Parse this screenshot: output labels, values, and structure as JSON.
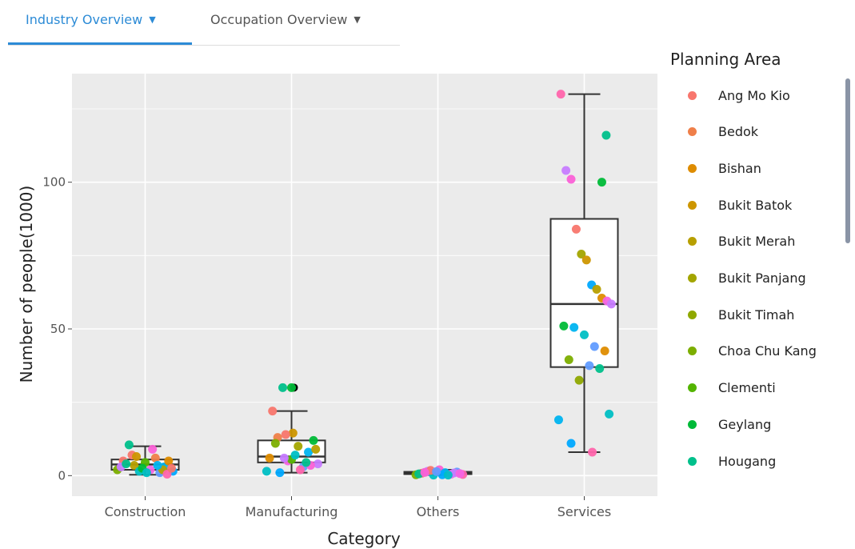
{
  "tabs": [
    {
      "label": "Industry Overview",
      "active": true
    },
    {
      "label": "Occupation Overview",
      "active": false
    }
  ],
  "colors": {
    "tab_active": "#2c8bd6",
    "panel_bg": "#ebebeb",
    "grid": "#ffffff",
    "box_stroke": "#333333",
    "outlier": "#000000"
  },
  "chart_data": {
    "type": "box",
    "xlabel": "Category",
    "ylabel": "Number of people(1000)",
    "ylim": [
      -7,
      137
    ],
    "yticks": [
      0,
      50,
      100
    ],
    "grid": true,
    "legend_position": "right",
    "legend_title": "Planning Area",
    "legend_entries": [
      {
        "name": "Ang Mo Kio",
        "color": "#f8766d"
      },
      {
        "name": "Bedok",
        "color": "#ef7f49"
      },
      {
        "name": "Bishan",
        "color": "#de8c00"
      },
      {
        "name": "Bukit Batok",
        "color": "#cd9600"
      },
      {
        "name": "Bukit Merah",
        "color": "#b79f00"
      },
      {
        "name": "Bukit Panjang",
        "color": "#a3a500"
      },
      {
        "name": "Bukit Timah",
        "color": "#8fa800"
      },
      {
        "name": "Choa Chu Kang",
        "color": "#7cae00"
      },
      {
        "name": "Clementi",
        "color": "#53b400"
      },
      {
        "name": "Geylang",
        "color": "#00ba38"
      },
      {
        "name": "Hougang",
        "color": "#00c08b"
      }
    ],
    "categories": [
      "Construction",
      "Manufacturing",
      "Others",
      "Services"
    ],
    "boxes": [
      {
        "category": "Construction",
        "whisker_low": 0.3,
        "q1": 2,
        "median": 3.8,
        "q3": 5.5,
        "whisker_high": 10
      },
      {
        "category": "Manufacturing",
        "whisker_low": 1,
        "q1": 4.5,
        "median": 6.5,
        "q3": 12,
        "whisker_high": 22,
        "outliers": [
          30
        ]
      },
      {
        "category": "Others",
        "whisker_low": 0.2,
        "q1": 0.5,
        "median": 0.8,
        "q3": 1.3,
        "whisker_high": 2
      },
      {
        "category": "Services",
        "whisker_low": 8,
        "q1": 37,
        "median": 58.5,
        "q3": 87.5,
        "whisker_high": 130
      }
    ],
    "points": [
      {
        "category": "Construction",
        "jitter": [
          -0.38,
          -0.3,
          -0.22,
          -0.15,
          -0.08,
          0,
          0.07,
          0.14,
          0.2,
          0.26,
          0.32,
          0.38,
          -0.33,
          -0.18,
          -0.04,
          0.1,
          0.24,
          -0.26,
          0.02,
          0.3,
          -0.12,
          0.17,
          0.36
        ],
        "values": [
          2,
          5,
          10.5,
          3.5,
          1.5,
          4.5,
          2,
          6,
          1,
          3,
          5,
          1.5,
          3,
          7,
          2.5,
          9,
          2,
          4,
          1,
          0.5,
          6.5,
          3.5,
          2.5
        ],
        "colors": [
          "#7cae00",
          "#f8766d",
          "#00c08b",
          "#b79f00",
          "#00bfc4",
          "#53b400",
          "#f564e3",
          "#ef7f49",
          "#619cff",
          "#00b4f0",
          "#de8c00",
          "#00a9ff",
          "#c77cff",
          "#f8766d",
          "#00ba38",
          "#fb61d7",
          "#b79f00",
          "#00c08b",
          "#00bfc4",
          "#ff65ac",
          "#cd9600",
          "#00b4f0",
          "#f8766d"
        ]
      },
      {
        "category": "Manufacturing",
        "jitter": [
          -0.34,
          -0.26,
          -0.19,
          -0.12,
          -0.05,
          0.02,
          0.09,
          0.16,
          0.23,
          0.3,
          0.36,
          -0.3,
          -0.16,
          0,
          0.12,
          0.26,
          -0.22,
          0.05,
          0.33,
          -0.08,
          0.2,
          0,
          -0.1
        ],
        "values": [
          1.5,
          22,
          13,
          30,
          5,
          14.5,
          10,
          3,
          8,
          12,
          4,
          6,
          1,
          5.5,
          2,
          3.5,
          11,
          7,
          9,
          14,
          4.5,
          30,
          6
        ],
        "colors": [
          "#00bfc4",
          "#f8766d",
          "#ef7f49",
          "#00c08b",
          "#f564e3",
          "#cd9600",
          "#a3a500",
          "#619cff",
          "#00b4f0",
          "#00ba38",
          "#c77cff",
          "#de8c00",
          "#00a9ff",
          "#53b400",
          "#ff65ac",
          "#fb61d7",
          "#7cae00",
          "#00bfc4",
          "#b79f00",
          "#f8766d",
          "#00c08b",
          "#00ba38",
          "#c77cff"
        ]
      },
      {
        "category": "Others",
        "jitter": [
          -0.3,
          -0.22,
          -0.14,
          -0.06,
          0.02,
          0.1,
          0.18,
          0.26,
          0.34,
          -0.26,
          -0.1,
          0.06,
          0.22,
          -0.18,
          0.14,
          0.3,
          -0.02
        ],
        "values": [
          0.3,
          0.8,
          1.5,
          0.2,
          2,
          1,
          0.5,
          1.2,
          0.4,
          0.6,
          1.8,
          0.3,
          0.9,
          1.1,
          0.2,
          0.7,
          1.4
        ],
        "colors": [
          "#7cae00",
          "#f8766d",
          "#c77cff",
          "#00bfc4",
          "#fb61d7",
          "#00b4f0",
          "#f564e3",
          "#619cff",
          "#ff65ac",
          "#00c08b",
          "#f8766d",
          "#00a9ff",
          "#c77cff",
          "#fb61d7",
          "#00bfc4",
          "#f564e3",
          "#619cff"
        ]
      },
      {
        "category": "Services",
        "jitter": [
          -0.32,
          -0.25,
          -0.18,
          -0.11,
          -0.04,
          0.03,
          0.1,
          0.17,
          0.24,
          0.31,
          0.37,
          -0.28,
          -0.14,
          0,
          0.14,
          0.28,
          -0.21,
          0.07,
          0.21,
          -0.07,
          0.34,
          -0.35,
          -0.18,
          0.11,
          0.24,
          0.3
        ],
        "values": [
          130,
          104,
          101,
          84,
          75.5,
          73.5,
          65,
          63.5,
          60.5,
          59.5,
          58.5,
          51,
          50.5,
          48,
          44,
          42.5,
          39.5,
          37.5,
          36.5,
          32.5,
          21,
          19,
          11,
          8,
          100,
          116
        ],
        "colors": [
          "#ff65ac",
          "#c77cff",
          "#fb61d7",
          "#f8766d",
          "#a3a500",
          "#cd9600",
          "#00a9ff",
          "#b79f00",
          "#de8c00",
          "#f564e3",
          "#c77cff",
          "#00ba38",
          "#00b4f0",
          "#00bfc4",
          "#619cff",
          "#de8c00",
          "#7cae00",
          "#619cff",
          "#00c08b",
          "#8fa800",
          "#00bfc4",
          "#00b4f0",
          "#00a9ff",
          "#ff65ac",
          "#00ba38",
          "#00c08b"
        ]
      }
    ]
  }
}
